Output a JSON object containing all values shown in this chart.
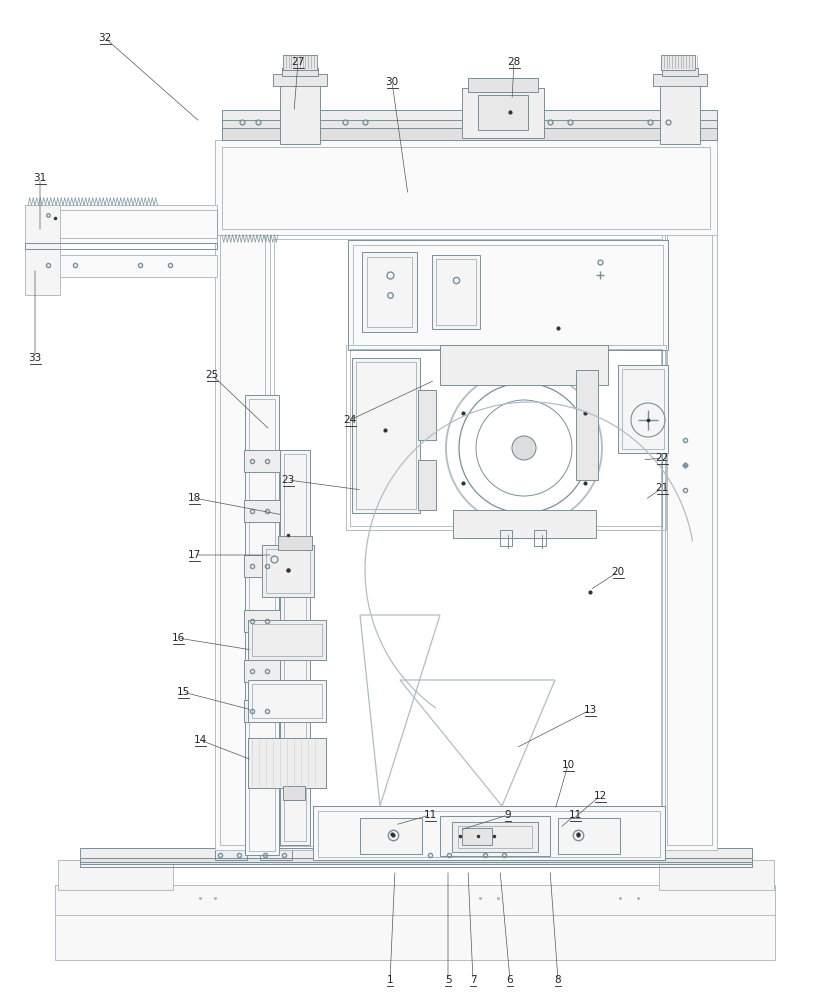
{
  "bg": "#ffffff",
  "lc": "#b0bec5",
  "dc": "#78909c",
  "tc": "#333333",
  "lw": 0.7,
  "fig_w": 8.32,
  "fig_h": 10.0,
  "dpi": 100,
  "labels": [
    [
      "1",
      390,
      980,
      395,
      870
    ],
    [
      "5",
      448,
      980,
      448,
      870
    ],
    [
      "6",
      510,
      980,
      500,
      870
    ],
    [
      "7",
      473,
      980,
      468,
      870
    ],
    [
      "8",
      558,
      980,
      550,
      870
    ],
    [
      "9",
      508,
      815,
      460,
      830
    ],
    [
      "10",
      568,
      765,
      555,
      810
    ],
    [
      "11",
      430,
      815,
      395,
      825
    ],
    [
      "11",
      575,
      815,
      560,
      828
    ],
    [
      "12",
      600,
      796,
      572,
      820
    ],
    [
      "13",
      590,
      710,
      516,
      748
    ],
    [
      "14",
      200,
      740,
      252,
      760
    ],
    [
      "15",
      183,
      692,
      252,
      710
    ],
    [
      "16",
      178,
      638,
      252,
      650
    ],
    [
      "17",
      194,
      555,
      273,
      555
    ],
    [
      "18",
      194,
      498,
      283,
      515
    ],
    [
      "20",
      618,
      572,
      590,
      590
    ],
    [
      "21",
      662,
      488,
      645,
      500
    ],
    [
      "22",
      662,
      458,
      642,
      460
    ],
    [
      "23",
      288,
      480,
      362,
      490
    ],
    [
      "24",
      350,
      420,
      435,
      380
    ],
    [
      "25",
      212,
      375,
      270,
      430
    ],
    [
      "27",
      298,
      62,
      294,
      112
    ],
    [
      "28",
      514,
      62,
      512,
      100
    ],
    [
      "30",
      392,
      82,
      408,
      195
    ],
    [
      "31",
      40,
      178,
      40,
      232
    ],
    [
      "32",
      105,
      38,
      200,
      122
    ],
    [
      "33",
      35,
      358,
      35,
      268
    ]
  ]
}
